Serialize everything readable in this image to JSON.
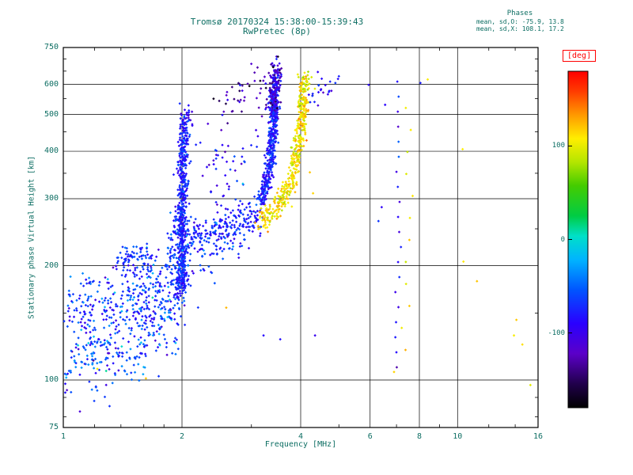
{
  "title": "Tromsø 20170324 15:38:00-15:39:43",
  "subtitle": "RwPretec (8p)",
  "colors": {
    "text": "#0d6e63",
    "frame": "#000000",
    "colorbar_label": "#ff0000",
    "o_mode_blue": "#2244ff",
    "x_mode_orange": "#ff9900"
  },
  "chart_data": {
    "type": "scatter",
    "title": "Tromsø 20170324 15:38:00-15:39:43",
    "subtitle": "RwPretec (8p)",
    "xlabel": "Frequency [MHz]",
    "ylabel": "Stationary phase Virtual Height [km]",
    "x_scale": "log",
    "y_scale": "log",
    "xlim": [
      1,
      16
    ],
    "ylim": [
      75,
      750
    ],
    "x_ticks": [
      1,
      2,
      4,
      6,
      8,
      10,
      16
    ],
    "y_ticks": [
      75,
      100,
      200,
      300,
      400,
      500,
      600,
      750
    ],
    "x_minor_ticks": [
      1.2,
      1.4,
      1.6,
      1.8,
      3,
      5,
      7,
      9,
      12,
      14
    ],
    "y_minor_ticks": [
      80,
      90,
      150,
      250,
      350,
      450,
      550,
      650,
      700
    ],
    "grid": true,
    "annotations": {
      "header": "Phases",
      "line_o": "mean, sd,O: -75.9, 13.8",
      "line_x": "mean, sd,X: 108.1, 17.2"
    },
    "colorbar": {
      "label": "[deg]",
      "range": [
        -180,
        180
      ],
      "ticks": [
        100,
        0,
        -100
      ],
      "stops": [
        [
          0.0,
          "#000000"
        ],
        [
          0.07,
          "#20004a"
        ],
        [
          0.16,
          "#5b00c8"
        ],
        [
          0.25,
          "#2a00ff"
        ],
        [
          0.35,
          "#0055ff"
        ],
        [
          0.44,
          "#00b4ff"
        ],
        [
          0.51,
          "#00e0c8"
        ],
        [
          0.57,
          "#00cc44"
        ],
        [
          0.66,
          "#44cc00"
        ],
        [
          0.73,
          "#b4e600"
        ],
        [
          0.8,
          "#ffee00"
        ],
        [
          0.87,
          "#ff9900"
        ],
        [
          0.94,
          "#ff3c00"
        ],
        [
          1.0,
          "#ff0000"
        ]
      ]
    },
    "traces": [
      {
        "name": "E-region-cloud-lower",
        "n": 320,
        "path": [
          [
            1.02,
            112
          ],
          [
            1.35,
            118
          ],
          [
            1.7,
            138
          ],
          [
            1.95,
            158
          ]
        ],
        "sx": 0.02,
        "sh": 0.055,
        "deg": [
          -62,
          26
        ]
      },
      {
        "name": "E-region-cloud-upper",
        "n": 260,
        "path": [
          [
            1.05,
            152
          ],
          [
            1.45,
            165
          ],
          [
            1.9,
            188
          ]
        ],
        "sx": 0.02,
        "sh": 0.045,
        "deg": [
          -70,
          22
        ]
      },
      {
        "name": "clump-200km",
        "n": 70,
        "path": [
          [
            1.4,
            205
          ],
          [
            1.62,
            212
          ]
        ],
        "sx": 0.012,
        "sh": 0.018,
        "deg": [
          -72,
          15
        ]
      },
      {
        "name": "cusp-2MHz-spike",
        "n": 520,
        "path": [
          [
            1.99,
            168
          ],
          [
            2.0,
            300
          ],
          [
            2.03,
            470
          ]
        ],
        "sx": 0.007,
        "sh": 0.02,
        "deg": [
          -76,
          14
        ]
      },
      {
        "name": "cusp-2MHz-base",
        "n": 150,
        "path": [
          [
            1.97,
            180
          ],
          [
            2.0,
            262
          ]
        ],
        "sx": 0.016,
        "sh": 0.035,
        "deg": [
          -70,
          18
        ]
      },
      {
        "name": "cusp-2MHz-top",
        "n": 30,
        "path": [
          [
            2.02,
            470
          ],
          [
            2.06,
            515
          ]
        ],
        "sx": 0.008,
        "sh": 0.015,
        "deg": [
          -92,
          20
        ]
      },
      {
        "name": "F-ledge",
        "n": 200,
        "path": [
          [
            2.08,
            238
          ],
          [
            2.5,
            248
          ],
          [
            2.9,
            262
          ],
          [
            3.15,
            282
          ]
        ],
        "sx": 0.01,
        "sh": 0.022,
        "deg": [
          -74,
          14
        ]
      },
      {
        "name": "ledge-scatter",
        "n": 55,
        "path": [
          [
            2.15,
            210
          ],
          [
            2.45,
            225
          ],
          [
            2.75,
            240
          ]
        ],
        "sx": 0.02,
        "sh": 0.04,
        "deg": [
          -70,
          18
        ]
      },
      {
        "name": "mid-scatter",
        "n": 50,
        "path": [
          [
            2.25,
            320
          ],
          [
            2.6,
            360
          ],
          [
            3.0,
            420
          ]
        ],
        "sx": 0.03,
        "sh": 0.06,
        "deg": [
          -85,
          25
        ]
      },
      {
        "name": "O-trace-asymptote",
        "n": 520,
        "path": [
          [
            3.18,
            295
          ],
          [
            3.32,
            350
          ],
          [
            3.4,
            430
          ],
          [
            3.44,
            560
          ],
          [
            3.47,
            645
          ]
        ],
        "sx": 0.006,
        "sh": 0.018,
        "deg": [
          -78,
          15
        ]
      },
      {
        "name": "O-trace-top-dark",
        "n": 110,
        "path": [
          [
            3.36,
            520
          ],
          [
            3.5,
            655
          ]
        ],
        "sx": 0.008,
        "sh": 0.02,
        "deg": [
          -115,
          22
        ]
      },
      {
        "name": "O-diagonal-sparse",
        "n": 40,
        "path": [
          [
            2.32,
            465
          ],
          [
            2.8,
            550
          ],
          [
            3.25,
            648
          ]
        ],
        "sx": 0.012,
        "sh": 0.02,
        "deg": [
          -125,
          20
        ]
      },
      {
        "name": "X-trace",
        "n": 430,
        "path": [
          [
            3.12,
            262
          ],
          [
            3.45,
            280
          ],
          [
            3.75,
            320
          ],
          [
            3.92,
            390
          ],
          [
            4.02,
            480
          ],
          [
            4.08,
            600
          ]
        ],
        "sx": 0.007,
        "sh": 0.018,
        "deg": [
          108,
          14
        ]
      },
      {
        "name": "X-trace-top",
        "n": 25,
        "path": [
          [
            4.05,
            600
          ],
          [
            4.12,
            625
          ]
        ],
        "sx": 0.008,
        "sh": 0.01,
        "deg": [
          108,
          15
        ]
      },
      {
        "name": "blue-above-X",
        "n": 22,
        "path": [
          [
            4.25,
            540
          ],
          [
            4.5,
            600
          ],
          [
            4.65,
            620
          ]
        ],
        "sx": 0.015,
        "sh": 0.02,
        "deg": [
          -85,
          20
        ]
      },
      {
        "name": "column-7MHz",
        "n": 20,
        "path": [
          [
            7.05,
            108
          ],
          [
            7.12,
            610
          ]
        ],
        "sx": 0.005,
        "sh": 0,
        "deg": [
          -85,
          25
        ],
        "even": true
      },
      {
        "name": "column-7.5MHz-orange",
        "n": 12,
        "path": [
          [
            7.35,
            120
          ],
          [
            7.55,
            520
          ]
        ],
        "sx": 0.008,
        "sh": 0,
        "deg": [
          108,
          12
        ],
        "even": true
      }
    ],
    "extra_points": [
      {
        "name": "stray-orange",
        "deg": 110,
        "sd": 8,
        "pts": [
          [
            1.22,
            107
          ],
          [
            1.62,
            101
          ],
          [
            2.59,
            155
          ],
          [
            4.22,
            352
          ],
          [
            4.3,
            310
          ],
          [
            8.4,
            618
          ],
          [
            10.3,
            405
          ],
          [
            10.35,
            205
          ],
          [
            11.2,
            182
          ],
          [
            13.9,
            131
          ],
          [
            14.6,
            124
          ],
          [
            14.1,
            144
          ],
          [
            15.3,
            97
          ],
          [
            6.9,
            105
          ]
        ]
      },
      {
        "name": "stray-blue",
        "deg": -85,
        "sd": 10,
        "pts": [
          [
            3.22,
            131
          ],
          [
            3.55,
            128
          ],
          [
            4.35,
            131
          ],
          [
            6.3,
            262
          ],
          [
            6.42,
            285
          ],
          [
            8.05,
            605
          ],
          [
            6.55,
            530
          ],
          [
            5.95,
            598
          ],
          [
            5.0,
            630
          ],
          [
            4.75,
            610
          ]
        ]
      }
    ]
  }
}
